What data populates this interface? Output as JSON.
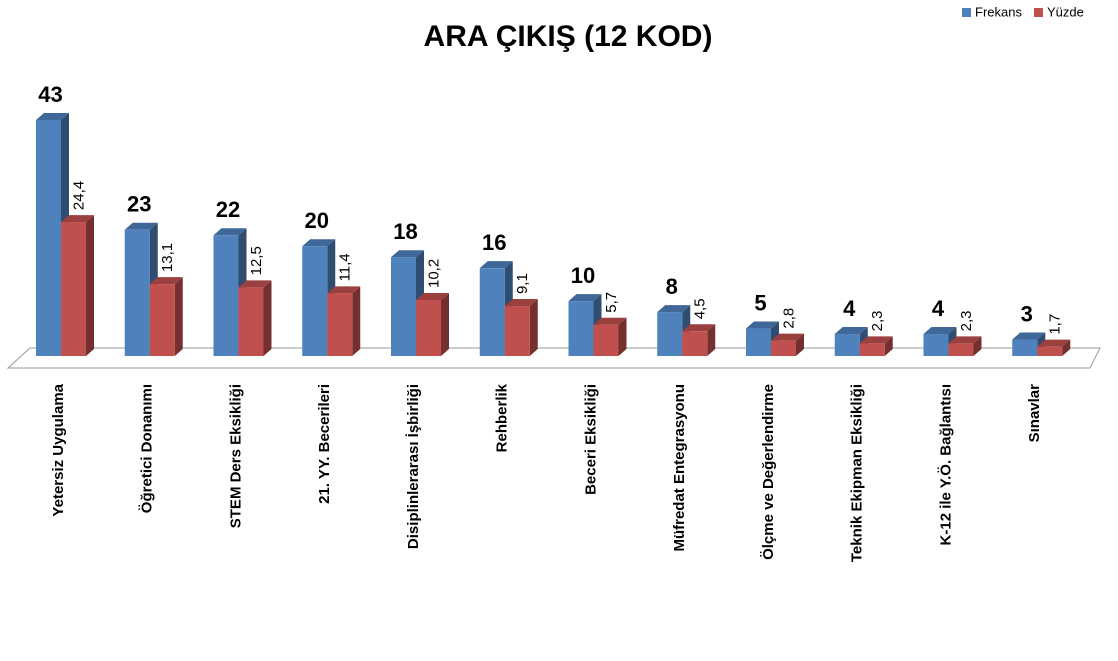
{
  "chart_data": {
    "type": "bar3d",
    "title": "ARA ÇIKIŞ (12 KOD)",
    "categories": [
      "Yetersiz Uygulama",
      "Öğretici Donanımı",
      "STEM Ders Eksikliği",
      "21. YY. Becerileri",
      "Disiplinlerarası İşbirliği",
      "Rehberlik",
      "Beceri Eksikliği",
      "Müfredat Entegrasyonu",
      "Ölçme ve Değerlendirme",
      "Teknik Ekipman Eksikliği",
      "K-12 ile Y.Ö. Bağlantısı",
      "Sınavlar"
    ],
    "series": [
      {
        "name": "Frekans",
        "color": "#4f81bd",
        "values": [
          43,
          23,
          22,
          20,
          18,
          16,
          10,
          8,
          5,
          4,
          4,
          3
        ]
      },
      {
        "name": "Yüzde",
        "color": "#c0504d",
        "values": [
          24.4,
          13.1,
          12.5,
          11.4,
          10.2,
          9.1,
          5.7,
          4.5,
          2.8,
          2.3,
          2.3,
          1.7
        ],
        "value_labels": [
          "24,4",
          "13,1",
          "12,5",
          "11,4",
          "10,2",
          "9,1",
          "5,7",
          "4,5",
          "2,8",
          "2,3",
          "2,3",
          "1,7"
        ]
      }
    ],
    "legend": "top-right"
  }
}
